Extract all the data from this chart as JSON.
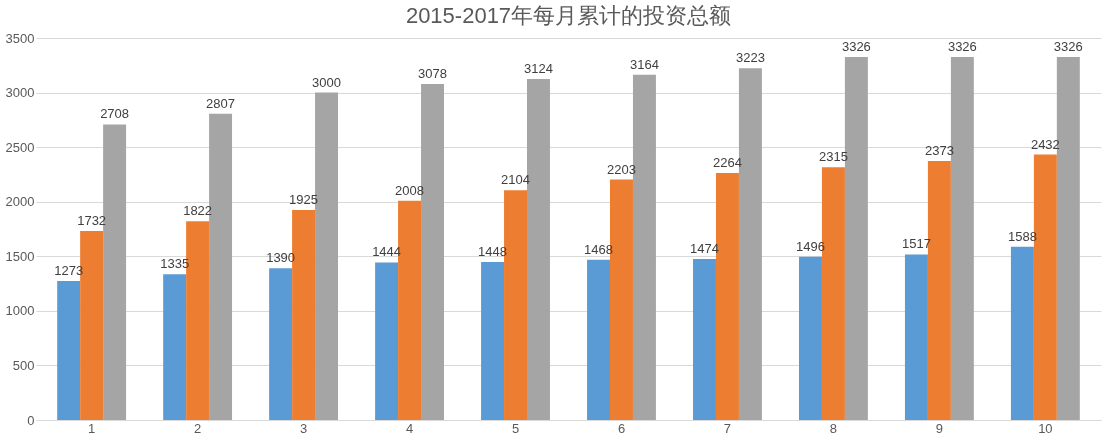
{
  "chart_data": {
    "type": "bar",
    "title": "2015-2017年每月累计的投资总额",
    "categories": [
      "1",
      "2",
      "3",
      "4",
      "5",
      "6",
      "7",
      "8",
      "9",
      "10"
    ],
    "series": [
      {
        "color": "#5b9bd5",
        "values": [
          1273,
          1335,
          1390,
          1444,
          1448,
          1468,
          1474,
          1496,
          1517,
          1588
        ]
      },
      {
        "color": "#ed7d31",
        "values": [
          1732,
          1822,
          1925,
          2008,
          2104,
          2203,
          2264,
          2315,
          2373,
          2432
        ]
      },
      {
        "color": "#a5a5a5",
        "values": [
          2708,
          2807,
          3000,
          3078,
          3124,
          3164,
          3223,
          3326,
          3326,
          3326
        ]
      }
    ],
    "ylim": [
      0,
      3500
    ],
    "yticks": [
      0,
      500,
      1000,
      1500,
      2000,
      2500,
      3000,
      3500
    ],
    "grid": "y",
    "data_labels": true
  }
}
